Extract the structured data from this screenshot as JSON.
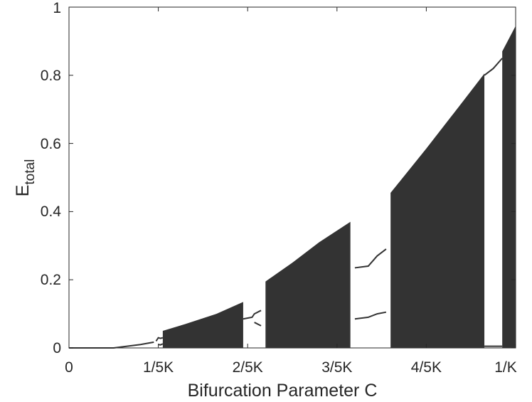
{
  "chart_data": {
    "type": "scatter",
    "title": "",
    "xlabel": "Bifurcation Parameter C",
    "ylabel_main": "E",
    "ylabel_sub": "total",
    "x_ticks": [
      "0",
      "1/5K",
      "2/5K",
      "3/5K",
      "4/5K",
      "1/K"
    ],
    "y_ticks": [
      "0",
      "0.2",
      "0.4",
      "0.6",
      "0.8",
      "1"
    ],
    "xlim": [
      0,
      1
    ],
    "ylim": [
      0,
      1
    ],
    "x_unit": "fraction of 1/K",
    "grid": false,
    "legend": "none",
    "color": "#333333",
    "series": [
      {
        "kind": "fixed-point",
        "points": [
          [
            0.0,
            0.0
          ],
          [
            0.05,
            0.0
          ],
          [
            0.1,
            0.0
          ],
          [
            0.13,
            0.005
          ],
          [
            0.16,
            0.01
          ],
          [
            0.19,
            0.017
          ]
        ]
      },
      {
        "kind": "period-2",
        "points": [
          [
            0.195,
            0.02
          ],
          [
            0.2,
            0.03
          ],
          [
            0.205,
            0.028
          ],
          [
            0.21,
            0.03
          ],
          [
            0.2,
            0.01
          ],
          [
            0.205,
            0.009
          ],
          [
            0.21,
            0.012
          ]
        ]
      },
      {
        "kind": "chaotic-band",
        "points": [
          [
            0.21,
            0.0
          ],
          [
            0.21,
            0.05
          ],
          [
            0.26,
            0.0
          ],
          [
            0.26,
            0.07
          ],
          [
            0.33,
            0.0
          ],
          [
            0.33,
            0.1
          ],
          [
            0.39,
            0.0
          ],
          [
            0.39,
            0.135
          ]
        ]
      },
      {
        "kind": "period-window",
        "points": [
          [
            0.39,
            0.085
          ],
          [
            0.41,
            0.09
          ],
          [
            0.415,
            0.1
          ],
          [
            0.43,
            0.11
          ],
          [
            0.415,
            0.075
          ],
          [
            0.43,
            0.065
          ]
        ]
      },
      {
        "kind": "chaotic-band",
        "points": [
          [
            0.44,
            0.0
          ],
          [
            0.44,
            0.195
          ],
          [
            0.5,
            0.0
          ],
          [
            0.5,
            0.25
          ],
          [
            0.56,
            0.0
          ],
          [
            0.56,
            0.31
          ],
          [
            0.63,
            0.0
          ],
          [
            0.63,
            0.37
          ]
        ]
      },
      {
        "kind": "period-window",
        "points": [
          [
            0.64,
            0.235
          ],
          [
            0.67,
            0.24
          ],
          [
            0.69,
            0.27
          ],
          [
            0.71,
            0.29
          ],
          [
            0.64,
            0.085
          ],
          [
            0.67,
            0.09
          ],
          [
            0.69,
            0.1
          ],
          [
            0.71,
            0.105
          ]
        ]
      },
      {
        "kind": "chaotic-band",
        "points": [
          [
            0.72,
            0.0
          ],
          [
            0.72,
            0.455
          ],
          [
            0.8,
            0.0
          ],
          [
            0.8,
            0.585
          ],
          [
            0.88,
            0.0
          ],
          [
            0.88,
            0.72
          ],
          [
            0.93,
            0.0
          ],
          [
            0.93,
            0.805
          ]
        ]
      },
      {
        "kind": "period-window",
        "points": [
          [
            0.93,
            0.8
          ],
          [
            0.95,
            0.82
          ],
          [
            0.97,
            0.85
          ],
          [
            0.93,
            0.005
          ],
          [
            0.95,
            0.005
          ],
          [
            0.97,
            0.005
          ]
        ]
      },
      {
        "kind": "chaotic-band",
        "points": [
          [
            0.97,
            0.0
          ],
          [
            0.97,
            0.87
          ],
          [
            1.0,
            0.0
          ],
          [
            1.0,
            0.945
          ]
        ]
      }
    ]
  }
}
